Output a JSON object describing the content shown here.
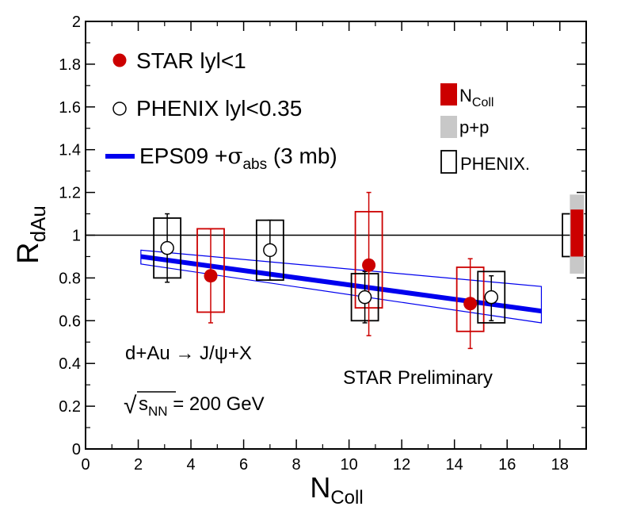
{
  "chart_data": {
    "type": "scatter",
    "title": "",
    "xlabel": {
      "main": "N",
      "sub": "Coll"
    },
    "ylabel": {
      "main": "R",
      "sub": "dAu"
    },
    "xlim": [
      0,
      19
    ],
    "ylim": [
      0,
      2
    ],
    "x_ticks": [
      0,
      2,
      4,
      6,
      8,
      10,
      12,
      14,
      16,
      18
    ],
    "x_tick_labels": [
      "0",
      "2",
      "4",
      "6",
      "8",
      "10",
      "12",
      "14",
      "16",
      "18"
    ],
    "y_ticks": [
      0,
      0.2,
      0.4,
      0.6,
      0.8,
      1,
      1.2,
      1.4,
      1.6,
      1.8,
      2
    ],
    "y_tick_labels": [
      "0",
      "0.2",
      "0.4",
      "0.6",
      "0.8",
      "1",
      "1.2",
      "1.4",
      "1.6",
      "1.8",
      "2"
    ],
    "reference_line": 1,
    "colors": {
      "star": "#cc0000",
      "model": "#0000ee",
      "gray": "#c8c8c8",
      "black": "#000000"
    },
    "series": [
      {
        "name": "STAR |y|<1",
        "marker": "filled-circle",
        "points": [
          {
            "x": 4.75,
            "y": 0.81,
            "err_lo": 0.59,
            "err_hi": 1.03,
            "sys_lo": 0.64,
            "sys_hi": 1.03
          },
          {
            "x": 10.75,
            "y": 0.86,
            "err_lo": 0.53,
            "err_hi": 1.2,
            "sys_lo": 0.66,
            "sys_hi": 1.11
          },
          {
            "x": 14.6,
            "y": 0.68,
            "err_lo": 0.47,
            "err_hi": 0.89,
            "sys_lo": 0.55,
            "sys_hi": 0.85
          }
        ]
      },
      {
        "name": "PHENIX |y|<0.35",
        "marker": "open-circle",
        "points": [
          {
            "x": 3.1,
            "y": 0.94,
            "err_lo": 0.78,
            "err_hi": 1.1,
            "sys_lo": 0.8,
            "sys_hi": 1.08
          },
          {
            "x": 7.0,
            "y": 0.93,
            "err_lo": 0.79,
            "err_hi": 1.07,
            "sys_lo": 0.79,
            "sys_hi": 1.07
          },
          {
            "x": 10.6,
            "y": 0.71,
            "err_lo": 0.59,
            "err_hi": 0.83,
            "sys_lo": 0.6,
            "sys_hi": 0.82
          },
          {
            "x": 15.4,
            "y": 0.71,
            "err_lo": 0.6,
            "err_hi": 0.81,
            "sys_lo": 0.59,
            "sys_hi": 0.83
          }
        ]
      },
      {
        "name": "EPS09 +σabs (3 mb)",
        "type": "line-with-band",
        "x": [
          2.1,
          17.3
        ],
        "y": [
          0.9,
          0.645
        ],
        "band_upper": [
          0.93,
          0.76
        ],
        "band_lower": [
          0.865,
          0.59
        ]
      }
    ],
    "global_uncertainties": [
      {
        "name": "NColl",
        "x": 18.65,
        "lo": 0.9,
        "hi": 1.12
      },
      {
        "name": "p+p",
        "x": 18.65,
        "lo": 0.82,
        "hi": 1.19
      },
      {
        "name": "PHENIX",
        "x": 18.4,
        "lo": 0.9,
        "hi": 1.1
      }
    ]
  },
  "legend": {
    "star": "STAR lyl<1",
    "phenix": "PHENIX lyl<0.35",
    "eps_pre": "EPS09 +",
    "eps_sigma": "σ",
    "eps_sub": "abs",
    "eps_post": " (3 mb)",
    "ncoll_main": "N",
    "ncoll_sub": "Coll",
    "pp": "p+p",
    "phenix_box": "PHENIX."
  },
  "annotations": {
    "reaction": "d+Au → J/ψ+X",
    "energy_sqrt": "√",
    "energy_s": "s",
    "energy_sub": "NN",
    "energy_value": " = 200 GeV",
    "preliminary": "STAR Preliminary"
  }
}
